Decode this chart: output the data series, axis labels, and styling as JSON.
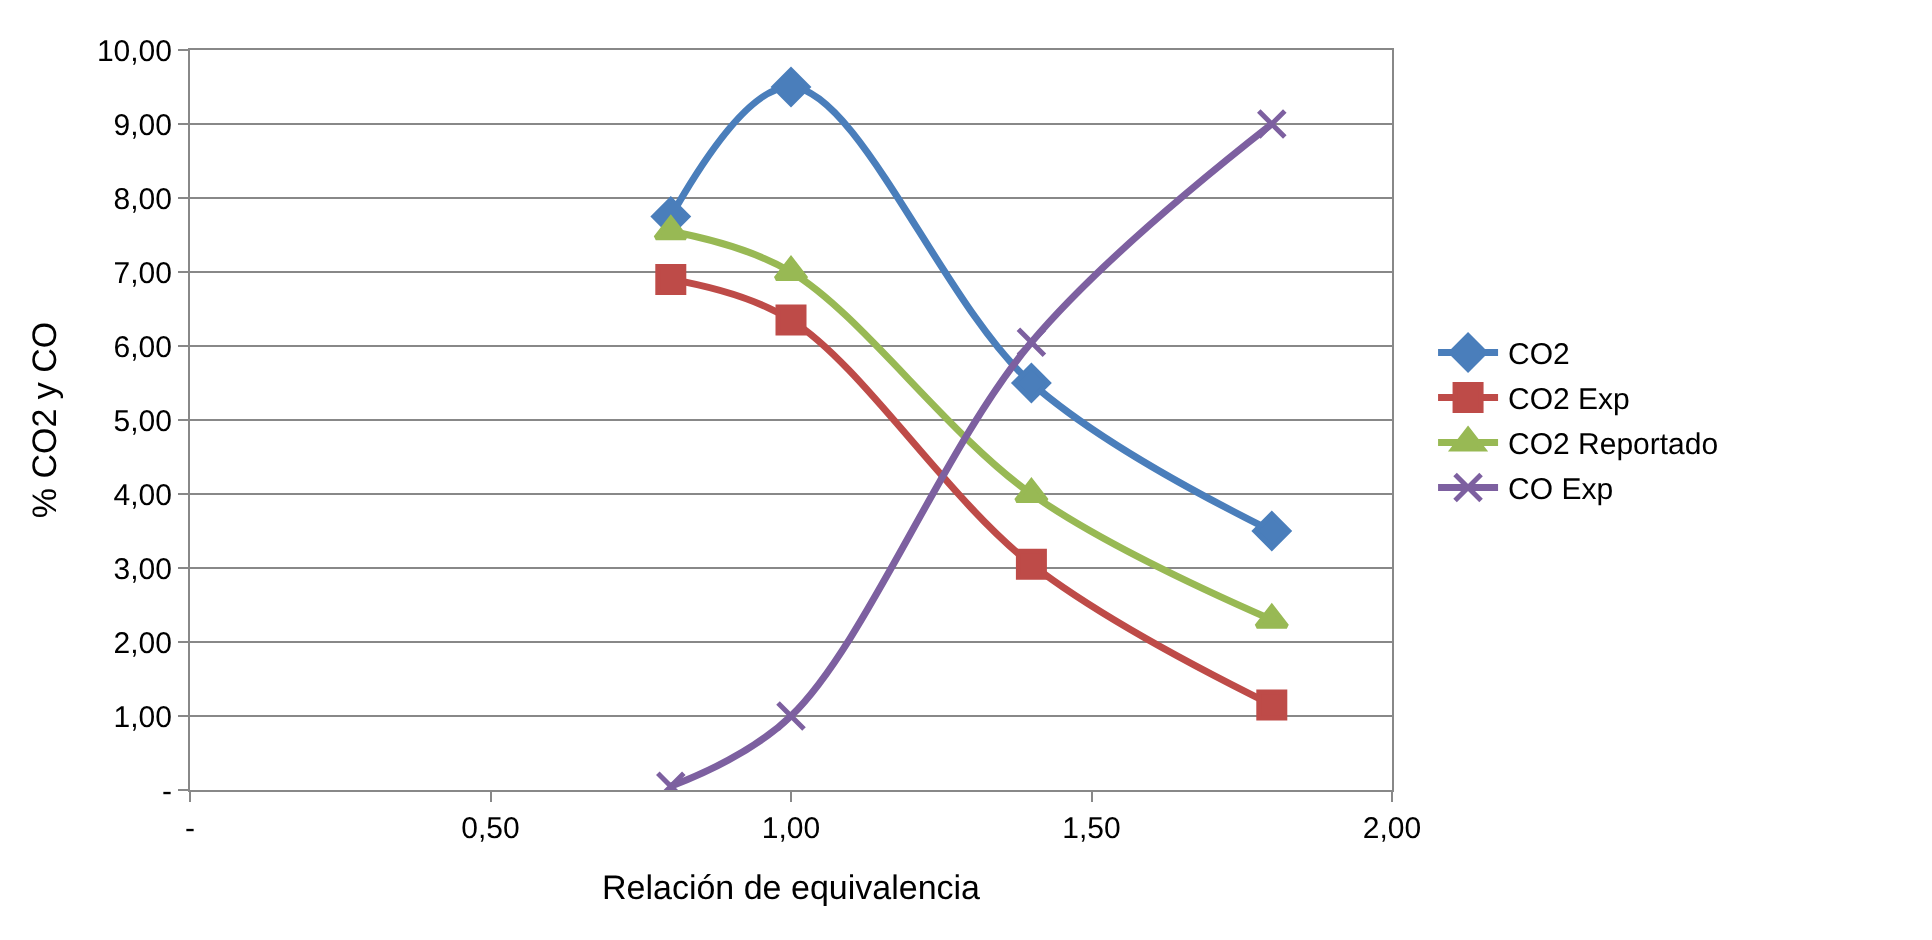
{
  "chart_data": {
    "type": "line",
    "xlabel": "Relación de equivalencia",
    "ylabel": "% CO2 y CO",
    "x": [
      0.8,
      1.0,
      1.4,
      1.8
    ],
    "series": [
      {
        "name": "CO2",
        "color": "#4a7ebb",
        "marker": "diamond",
        "values": [
          7.75,
          9.5,
          5.5,
          3.5
        ]
      },
      {
        "name": "CO2 Exp",
        "color": "#be4b48",
        "marker": "square",
        "values": [
          6.9,
          6.35,
          3.05,
          1.15
        ]
      },
      {
        "name": "CO2 Reportado",
        "color": "#98b954",
        "marker": "triangle",
        "values": [
          7.55,
          7.0,
          4.0,
          2.3
        ]
      },
      {
        "name": "CO Exp",
        "color": "#7d60a0",
        "marker": "cross",
        "values": [
          0.05,
          1.0,
          6.05,
          9.0
        ]
      }
    ],
    "xlim": [
      0,
      2
    ],
    "xticks": [
      {
        "value": 0,
        "label": "-"
      },
      {
        "value": 0.5,
        "label": "0,50"
      },
      {
        "value": 1,
        "label": "1,00"
      },
      {
        "value": 1.5,
        "label": "1,50"
      },
      {
        "value": 2,
        "label": "2,00"
      }
    ],
    "ylim": [
      0,
      10
    ],
    "yticks": [
      {
        "value": 0,
        "label": "-"
      },
      {
        "value": 1,
        "label": "1,00"
      },
      {
        "value": 2,
        "label": "2,00"
      },
      {
        "value": 3,
        "label": "3,00"
      },
      {
        "value": 4,
        "label": "4,00"
      },
      {
        "value": 5,
        "label": "5,00"
      },
      {
        "value": 6,
        "label": "6,00"
      },
      {
        "value": 7,
        "label": "7,00"
      },
      {
        "value": 8,
        "label": "8,00"
      },
      {
        "value": 9,
        "label": "9,00"
      },
      {
        "value": 10,
        "label": "10,00"
      }
    ],
    "grid": "y",
    "legend": "right",
    "line_style": "solid"
  }
}
